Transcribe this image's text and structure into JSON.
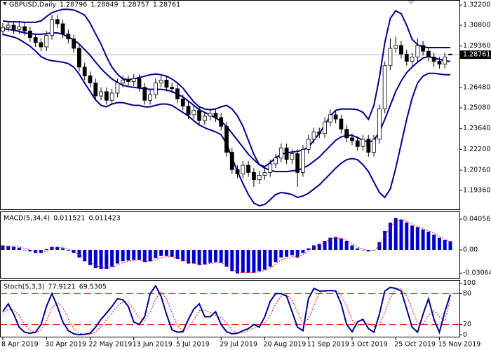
{
  "chart_data": [
    {
      "type": "candlestick",
      "title": "GBPUSD,Daily",
      "categories": [
        "8 Apr 2019",
        null,
        null,
        null,
        null,
        null,
        null,
        null,
        "30 Apr 2019",
        null,
        null,
        null,
        null,
        null,
        null,
        null,
        "22 May 2019",
        null,
        null,
        null,
        null,
        null,
        null,
        null,
        "13 Jun 2019",
        null,
        null,
        null,
        null,
        null,
        null,
        null,
        "5 Jul 2019",
        null,
        null,
        null,
        null,
        null,
        null,
        null,
        "29 Jul 2019",
        null,
        null,
        null,
        null,
        null,
        null,
        null,
        "20 Aug 2019",
        null,
        null,
        null,
        null,
        null,
        null,
        null,
        "11 Sep 2019",
        null,
        null,
        null,
        null,
        null,
        null,
        null,
        "3 Oct 2019",
        null,
        null,
        null,
        null,
        null,
        null,
        null,
        "25 Oct 2019",
        null,
        null,
        null,
        null,
        null,
        null,
        null,
        "15 Nov 2019",
        null,
        null
      ],
      "open": [
        1.304,
        1.3065,
        1.308,
        1.305,
        1.307,
        1.304,
        1.2995,
        1.296,
        1.293,
        1.301,
        1.312,
        1.309,
        1.302,
        1.2985,
        1.292,
        1.279,
        1.273,
        1.268,
        1.259,
        1.262,
        1.256,
        1.261,
        1.268,
        1.27,
        1.269,
        1.271,
        1.265,
        1.256,
        1.26,
        1.268,
        1.27,
        1.265,
        1.264,
        1.257,
        1.252,
        1.246,
        1.249,
        1.242,
        1.245,
        1.247,
        1.244,
        1.238,
        1.22,
        1.208,
        1.205,
        1.211,
        1.206,
        1.201,
        1.204,
        1.206,
        1.212,
        1.216,
        1.223,
        1.215,
        1.219,
        1.206,
        1.222,
        1.229,
        1.234,
        1.233,
        1.241,
        1.246,
        1.243,
        1.236,
        1.23,
        1.228,
        1.224,
        1.229,
        1.22,
        1.229,
        1.25,
        1.28,
        1.292,
        1.294,
        1.288,
        1.283,
        1.286,
        1.294,
        1.29,
        1.286,
        1.283,
        1.281,
        1.28796
      ],
      "high": [
        1.3095,
        1.311,
        1.311,
        1.31,
        1.31,
        1.307,
        1.3025,
        1.299,
        1.304,
        1.315,
        1.315,
        1.312,
        1.305,
        1.3015,
        1.295,
        1.282,
        1.276,
        1.271,
        1.265,
        1.265,
        1.264,
        1.271,
        1.273,
        1.273,
        1.274,
        1.274,
        1.268,
        1.263,
        1.271,
        1.273,
        1.273,
        1.268,
        1.267,
        1.26,
        1.255,
        1.252,
        1.252,
        1.248,
        1.25,
        1.25,
        1.247,
        1.241,
        1.223,
        1.211,
        1.214,
        1.214,
        1.209,
        1.207,
        1.209,
        1.215,
        1.219,
        1.226,
        1.226,
        1.222,
        1.222,
        1.225,
        1.232,
        1.237,
        1.237,
        1.244,
        1.25,
        1.249,
        1.246,
        1.239,
        1.233,
        1.231,
        1.232,
        1.232,
        1.232,
        1.253,
        1.283,
        1.299,
        1.3,
        1.297,
        1.291,
        1.289,
        1.299,
        1.297,
        1.293,
        1.289,
        1.286,
        1.289,
        1.28849
      ],
      "low": [
        1.301,
        1.3035,
        1.302,
        1.302,
        1.301,
        1.2965,
        1.293,
        1.29,
        1.29,
        1.298,
        1.306,
        1.299,
        1.2955,
        1.289,
        1.276,
        1.27,
        1.265,
        1.256,
        1.256,
        1.253,
        1.253,
        1.258,
        1.265,
        1.266,
        1.266,
        1.262,
        1.253,
        1.253,
        1.257,
        1.265,
        1.262,
        1.261,
        1.254,
        1.249,
        1.243,
        1.243,
        1.239,
        1.239,
        1.242,
        1.241,
        1.235,
        1.217,
        1.205,
        1.202,
        1.202,
        1.203,
        1.196,
        1.198,
        1.201,
        1.203,
        1.209,
        1.213,
        1.212,
        1.212,
        1.196,
        1.203,
        1.219,
        1.226,
        1.23,
        1.23,
        1.238,
        1.24,
        1.233,
        1.227,
        1.225,
        1.221,
        1.221,
        1.217,
        1.217,
        1.226,
        1.247,
        1.277,
        1.289,
        1.285,
        1.28,
        1.28,
        1.283,
        1.287,
        1.283,
        1.279,
        1.278,
        1.278,
        1.28757
      ],
      "close": [
        1.3065,
        1.308,
        1.305,
        1.307,
        1.304,
        1.2995,
        1.296,
        1.293,
        1.301,
        1.312,
        1.309,
        1.302,
        1.2985,
        1.292,
        1.279,
        1.273,
        1.268,
        1.259,
        1.262,
        1.256,
        1.261,
        1.268,
        1.27,
        1.269,
        1.271,
        1.265,
        1.256,
        1.26,
        1.268,
        1.27,
        1.265,
        1.264,
        1.257,
        1.252,
        1.246,
        1.249,
        1.242,
        1.245,
        1.247,
        1.244,
        1.238,
        1.22,
        1.208,
        1.205,
        1.211,
        1.206,
        1.201,
        1.204,
        1.206,
        1.212,
        1.216,
        1.223,
        1.215,
        1.219,
        1.206,
        1.222,
        1.229,
        1.234,
        1.233,
        1.241,
        1.246,
        1.243,
        1.236,
        1.23,
        1.228,
        1.224,
        1.229,
        1.22,
        1.229,
        1.25,
        1.28,
        1.292,
        1.294,
        1.288,
        1.283,
        1.286,
        1.294,
        1.29,
        1.286,
        1.283,
        1.281,
        1.286,
        1.28761
      ],
      "color_up": "#ffffff",
      "color_down": "#000000",
      "series": [
        {
          "color": "#00008b",
          "values": [
            1.311,
            1.3105,
            1.3104,
            1.3104,
            1.31,
            1.31,
            1.31,
            1.311,
            1.314,
            1.3167,
            1.318,
            1.319,
            1.319,
            1.3186,
            1.317,
            1.315,
            1.3094,
            1.302,
            1.295,
            1.2863,
            1.279,
            1.2742,
            1.2708,
            1.2703,
            1.2708,
            1.2718,
            1.2727,
            1.2737,
            1.2742,
            1.2737,
            1.2727,
            1.2708,
            1.2679,
            1.2645,
            1.2597,
            1.2549,
            1.2515,
            1.25,
            1.2495,
            1.25,
            1.2515,
            1.2525,
            1.25,
            1.2452,
            1.238,
            1.2283,
            1.2186,
            1.2114,
            1.21,
            1.2128,
            1.2162,
            1.2186,
            1.2196,
            1.2201,
            1.2206,
            1.2216,
            1.2235,
            1.2283,
            1.2331,
            1.2389,
            1.2452,
            1.249,
            1.25,
            1.25,
            1.25,
            1.2495,
            1.2476,
            1.2428,
            1.2525,
            1.2718,
            1.2959,
            1.3128,
            1.318,
            1.316,
            1.308,
            1.2983,
            1.2945,
            1.293,
            1.2925,
            1.2925,
            1.2925,
            1.2925,
            1.2925
          ]
        },
        {
          "color": "#00008b",
          "values": [
            1.3056,
            1.3051,
            1.3046,
            1.3037,
            1.3027,
            1.3022,
            1.3017,
            1.3017,
            1.3022,
            1.3027,
            1.3027,
            1.3017,
            1.2998,
            1.2979,
            1.295,
            1.2911,
            1.2872,
            1.2824,
            1.278,
            1.2742,
            1.2708,
            1.2684,
            1.2664,
            1.2655,
            1.265,
            1.2645,
            1.264,
            1.2636,
            1.2636,
            1.2636,
            1.2631,
            1.2621,
            1.2602,
            1.2583,
            1.2554,
            1.2525,
            1.2495,
            1.2476,
            1.2457,
            1.2438,
            1.2413,
            1.238,
            1.2331,
            1.2283,
            1.2235,
            1.2186,
            1.2148,
            1.2114,
            1.209,
            1.2075,
            1.2066,
            1.2066,
            1.2066,
            1.2071,
            1.2075,
            1.209,
            1.2109,
            1.2138,
            1.2167,
            1.2206,
            1.2244,
            1.2283,
            1.2307,
            1.2317,
            1.2317,
            1.2302,
            1.2283,
            1.2269,
            1.2283,
            1.2341,
            1.2428,
            1.2525,
            1.2621,
            1.2694,
            1.2752,
            1.279,
            1.2824,
            1.2853,
            1.2863,
            1.2853,
            1.2843,
            1.2834,
            1.2829
          ]
        },
        {
          "color": "#00008b",
          "values": [
            1.3017,
            1.3007,
            1.2998,
            1.2983,
            1.2959,
            1.2935,
            1.2901,
            1.2863,
            1.2843,
            1.2834,
            1.2829,
            1.2824,
            1.2814,
            1.279,
            1.2742,
            1.2679,
            1.2621,
            1.2563,
            1.2525,
            1.2515,
            1.2534,
            1.2544,
            1.2544,
            1.2534,
            1.2525,
            1.2525,
            1.2515,
            1.2515,
            1.2525,
            1.2534,
            1.2534,
            1.2525,
            1.25,
            1.2476,
            1.2452,
            1.2418,
            1.2389,
            1.237,
            1.2355,
            1.2341,
            1.2322,
            1.2259,
            1.2162,
            1.2066,
            1.1984,
            1.1907,
            1.1848,
            1.1829,
            1.1839,
            1.1872,
            1.1907,
            1.1921,
            1.1916,
            1.1907,
            1.1887,
            1.1897,
            1.1916,
            1.1945,
            1.1974,
            1.2012,
            1.2051,
            1.209,
            1.2124,
            1.2148,
            1.2157,
            1.2148,
            1.2114,
            1.2066,
            1.1993,
            1.1921,
            1.1887,
            1.1945,
            1.209,
            1.2259,
            1.2428,
            1.2573,
            1.2679,
            1.2727,
            1.2747,
            1.2747,
            1.2742,
            1.2737,
            1.2737
          ]
        }
      ],
      "ylim": [
        1.18,
        1.325
      ],
      "yticks": [
        {
          "value": 1.322,
          "label": "1.32200"
        },
        {
          "value": 1.308,
          "label": "1.30800"
        },
        {
          "value": 1.2936,
          "label": "1.29360"
        },
        {
          "value": 1.2648,
          "label": "1.26480"
        },
        {
          "value": 1.2508,
          "label": "1.25080"
        },
        {
          "value": 1.2364,
          "label": "1.23640"
        },
        {
          "value": 1.222,
          "label": "1.22200"
        },
        {
          "value": 1.2076,
          "label": "1.20760"
        },
        {
          "value": 1.1936,
          "label": "1.19360"
        }
      ]
    },
    {
      "type": "macd",
      "title": "MACD(5,34,4)",
      "series": [
        {
          "color": "#0000cd",
          "values": [
            0.006,
            0.005,
            0.004,
            0.003,
            0,
            -0.002,
            -0.004,
            -0.004,
            0.001,
            0.004,
            0.004,
            0.002,
            -0.001,
            -0.004,
            -0.01,
            -0.015,
            -0.02,
            -0.024,
            -0.025,
            -0.025,
            -0.022,
            -0.018,
            -0.015,
            -0.014,
            -0.013,
            -0.013,
            -0.016,
            -0.015,
            -0.011,
            -0.008,
            -0.008,
            -0.009,
            -0.012,
            -0.015,
            -0.018,
            -0.018,
            -0.02,
            -0.019,
            -0.017,
            -0.016,
            -0.017,
            -0.022,
            -0.028,
            -0.031,
            -0.03,
            -0.03,
            -0.03,
            -0.028,
            -0.026,
            -0.022,
            -0.016,
            -0.01,
            -0.009,
            -0.007,
            -0.01,
            -0.004,
            0.002,
            0.006,
            0.008,
            0.012,
            0.016,
            0.017,
            0.015,
            0.012,
            0.006,
            0.002,
            0,
            -0.002,
            0,
            0.01,
            0.025,
            0.036,
            0.042,
            0.04,
            0.036,
            0.032,
            0.03,
            0.027,
            0.024,
            0.02,
            0.016,
            0.013,
            0.011521
          ]
        },
        {
          "color": "#ff0000",
          "values": [
            0.005,
            0.005,
            0.005,
            0.004,
            0.002,
            0,
            -0.002,
            -0.003,
            -0.002,
            0.001,
            0.003,
            0.003,
            0.001,
            -0.002,
            -0.006,
            -0.011,
            -0.016,
            -0.02,
            -0.023,
            -0.024,
            -0.023,
            -0.02,
            -0.017,
            -0.015,
            -0.014,
            -0.013,
            -0.015,
            -0.015,
            -0.013,
            -0.01,
            -0.009,
            -0.009,
            -0.011,
            -0.013,
            -0.016,
            -0.017,
            -0.019,
            -0.019,
            -0.018,
            -0.017,
            -0.017,
            -0.02,
            -0.025,
            -0.029,
            -0.03,
            -0.03,
            -0.03,
            -0.029,
            -0.027,
            -0.024,
            -0.019,
            -0.013,
            -0.011,
            -0.009,
            -0.009,
            -0.006,
            -0.001,
            0.004,
            0.007,
            0.01,
            0.014,
            0.016,
            0.015,
            0.013,
            0.008,
            0.004,
            0.001,
            -0.001,
            -0.001,
            0.006,
            0.018,
            0.03,
            0.038,
            0.04,
            0.037,
            0.034,
            0.031,
            0.028,
            0.025,
            0.022,
            0.018,
            0.014,
            0.011423
          ]
        }
      ],
      "ylim": [
        -0.0378,
        0.0498
      ],
      "yticks": [
        0.04056,
        {
          "value": 0,
          "label": "0.00"
        },
        -0.03064
      ]
    },
    {
      "type": "stochastic",
      "title": "Stoch(5,3,3)",
      "series": [
        {
          "color": "#00008b",
          "values": [
            45,
            60,
            40,
            15,
            5,
            3,
            5,
            20,
            55,
            80,
            55,
            25,
            8,
            2,
            0,
            1,
            3,
            15,
            30,
            42,
            55,
            70,
            68,
            55,
            25,
            20,
            35,
            80,
            95,
            75,
            40,
            10,
            5,
            6,
            30,
            50,
            60,
            35,
            35,
            45,
            20,
            6,
            2,
            3,
            8,
            12,
            20,
            15,
            35,
            65,
            80,
            80,
            75,
            45,
            15,
            8,
            70,
            90,
            85,
            85,
            86,
            85,
            60,
            20,
            6,
            25,
            30,
            12,
            5,
            40,
            85,
            92,
            90,
            85,
            50,
            15,
            5,
            40,
            70,
            30,
            5,
            45,
            77.9121
          ]
        },
        {
          "color": "#ff0000",
          "values": [
            40,
            50,
            48,
            38,
            20,
            8,
            4,
            10,
            27,
            52,
            63,
            53,
            30,
            12,
            3,
            1,
            1,
            6,
            16,
            29,
            42,
            56,
            64,
            64,
            49,
            33,
            27,
            45,
            70,
            83,
            70,
            42,
            18,
            7,
            14,
            29,
            47,
            48,
            43,
            38,
            33,
            24,
            9,
            4,
            4,
            8,
            13,
            16,
            23,
            38,
            60,
            75,
            78,
            67,
            45,
            23,
            31,
            56,
            82,
            87,
            85,
            85,
            77,
            55,
            29,
            17,
            20,
            22,
            16,
            19,
            43,
            72,
            89,
            89,
            75,
            50,
            23,
            20,
            38,
            47,
            35,
            27,
            69.5305
          ]
        }
      ],
      "levels": [
        80,
        20
      ],
      "level_color": "#e00000",
      "ylim": [
        -5,
        105
      ],
      "yticks": [
        100,
        80,
        20,
        0
      ]
    }
  ]
}
